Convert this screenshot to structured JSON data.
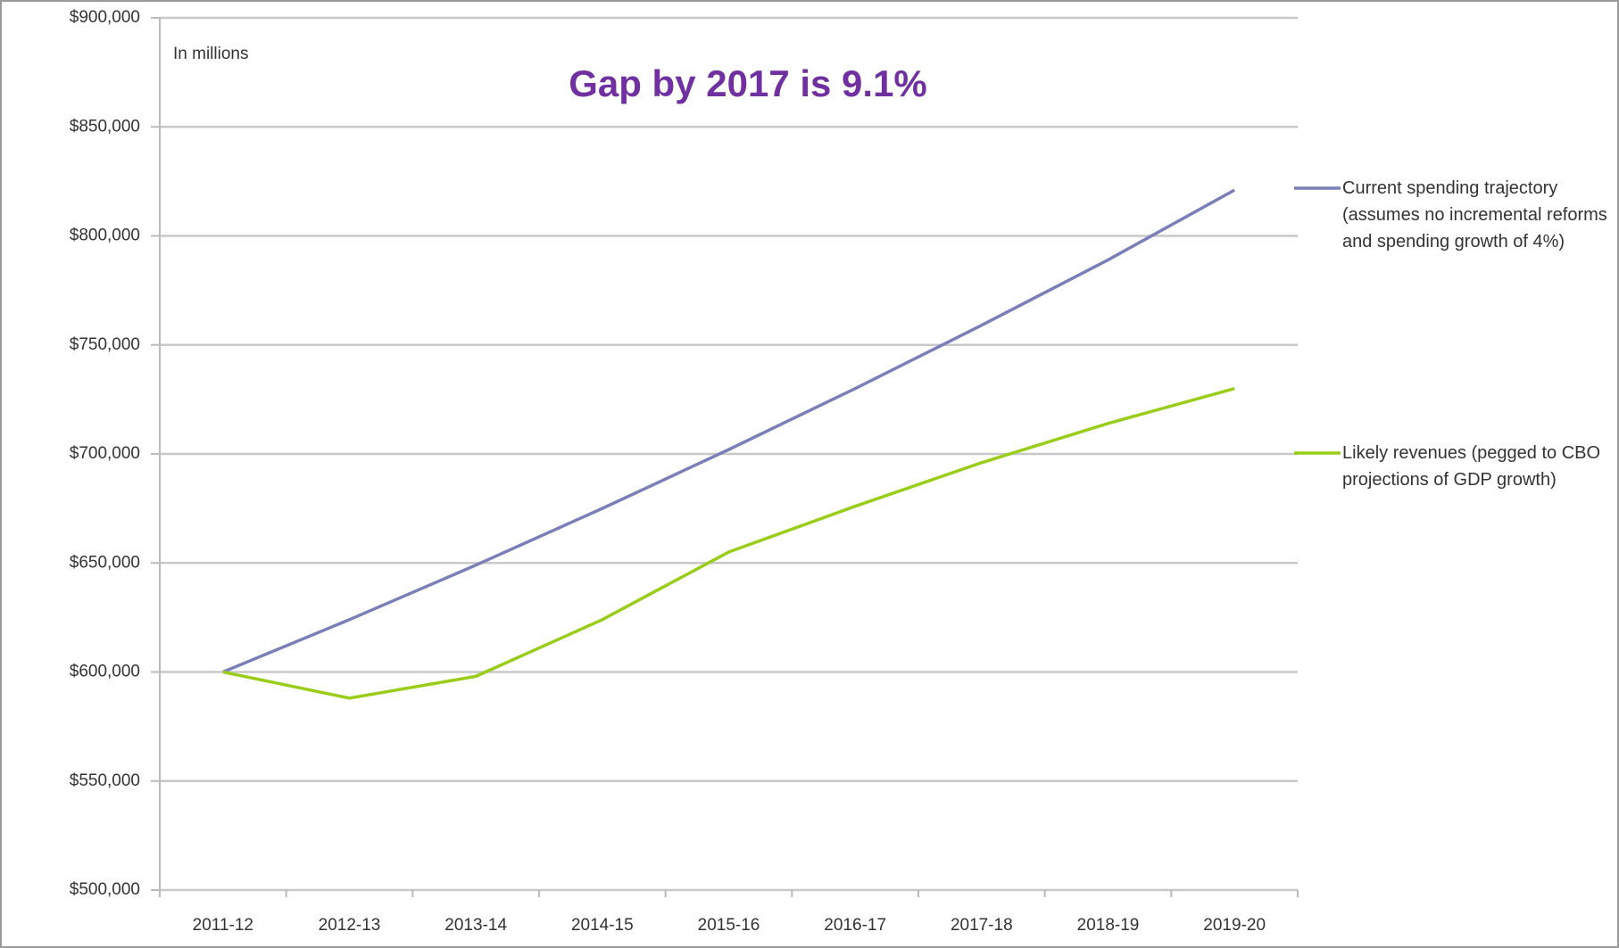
{
  "chart_data": {
    "type": "line",
    "annotations": [
      "In millions",
      "Gap by 2017 is 9.1%"
    ],
    "categories": [
      "2011-12",
      "2012-13",
      "2013-14",
      "2014-15",
      "2015-16",
      "2016-17",
      "2017-18",
      "2018-19",
      "2019-20"
    ],
    "series": [
      {
        "name": "Current spending trajectory (assumes no incremental reforms and spending growth of 4%)",
        "color": "#7b7fb8",
        "values": [
          600000,
          624000,
          649000,
          675000,
          702000,
          730000,
          759000,
          789000,
          821000
        ]
      },
      {
        "name": "Likely revenues (pegged to CBO projections of GDP growth)",
        "color": "#9acd1a",
        "values": [
          600000,
          588000,
          598000,
          624000,
          655000,
          676000,
          696000,
          714000,
          730000
        ]
      }
    ],
    "ylim": [
      500000,
      900000
    ],
    "yticks": [
      {
        "value": 500000,
        "label": "$500,000"
      },
      {
        "value": 550000,
        "label": "$550,000"
      },
      {
        "value": 600000,
        "label": "$600,000"
      },
      {
        "value": 650000,
        "label": "$650,000"
      },
      {
        "value": 700000,
        "label": "$700,000"
      },
      {
        "value": 750000,
        "label": "$750,000"
      },
      {
        "value": 800000,
        "label": "$800,000"
      },
      {
        "value": 850000,
        "label": "$850,000"
      },
      {
        "value": 900000,
        "label": "$900,000"
      }
    ],
    "grid": true,
    "legend": "right"
  }
}
